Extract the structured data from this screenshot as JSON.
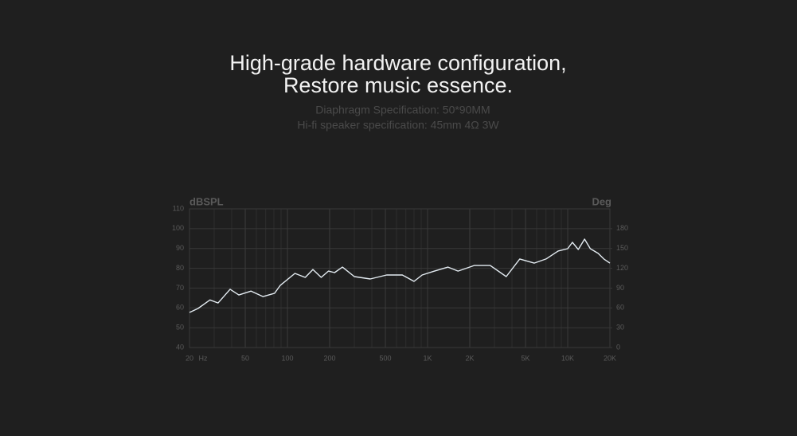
{
  "chart_data": {
    "type": "line",
    "title": [
      "High-grade hardware configuration,",
      "Restore music essence."
    ],
    "subtitle": [
      "Diaphragm Specification: 50*90MM",
      "Hi-fi speaker specification: 45mm 4Ω 3W"
    ],
    "y_label": "dBSPL",
    "y2_label": "Deg",
    "x_unit": "Hz",
    "log_x": true,
    "grid": true,
    "xlim": [
      20,
      20000
    ],
    "xticks": [
      20,
      50,
      100,
      200,
      500,
      {
        "value": 1000,
        "label": "1K"
      },
      {
        "value": 2000,
        "label": "2K"
      },
      {
        "value": 5000,
        "label": "5K"
      },
      {
        "value": 10000,
        "label": "10K"
      },
      {
        "value": 20000,
        "label": "20K"
      }
    ],
    "ylim": [
      40,
      110
    ],
    "yticks": [
      40,
      50,
      60,
      70,
      80,
      90,
      100,
      110
    ],
    "y2lim": [
      0,
      210
    ],
    "y2ticks": [
      0,
      30,
      60,
      90,
      120,
      150,
      180
    ],
    "x": [
      20,
      23,
      28,
      32,
      39,
      45,
      55,
      67,
      81,
      89,
      113,
      134,
      152,
      174,
      196,
      217,
      247,
      300,
      390,
      510,
      660,
      800,
      915,
      1120,
      1400,
      1650,
      2150,
      2800,
      3640,
      4550,
      5760,
      7000,
      8550,
      10000,
      10800,
      11900,
      13200,
      14500,
      16500,
      18100,
      20000
    ],
    "series": [
      {
        "color": "#e4ecf2",
        "values": [
          57.7,
          59.7,
          64,
          62.5,
          69.4,
          66.5,
          68.5,
          65.7,
          67.4,
          71.4,
          77.4,
          75.4,
          79.4,
          75.4,
          78.6,
          77.8,
          80.6,
          75.8,
          74.6,
          76.6,
          76.6,
          73.4,
          76.6,
          78.6,
          80.6,
          78.6,
          81.4,
          81.4,
          75.8,
          84.7,
          82.6,
          84.7,
          88.7,
          89.9,
          93.1,
          89.5,
          94.7,
          89.9,
          87.5,
          84.7,
          82.6
        ]
      }
    ]
  }
}
